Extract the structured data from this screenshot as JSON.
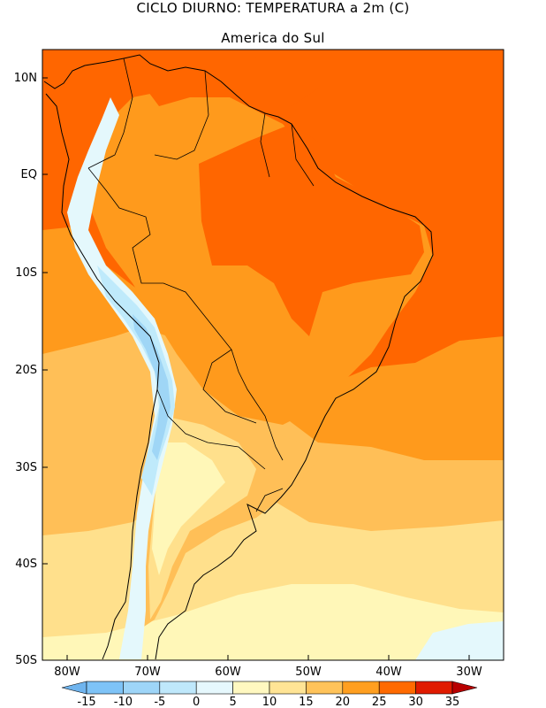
{
  "title": "CICLO DIURNO: TEMPERATURA a 2m (C)",
  "subtitle": "America do Sul",
  "y_ticks": [
    "10N",
    "EQ",
    "10S",
    "20S",
    "30S",
    "40S",
    "50S"
  ],
  "x_ticks": [
    "80W",
    "70W",
    "60W",
    "50W",
    "40W",
    "30W"
  ],
  "colorbar": {
    "labels": [
      "-15",
      "-10",
      "-5",
      "0",
      "5",
      "10",
      "15",
      "20",
      "25",
      "30",
      "35"
    ],
    "colors": [
      "#6fb4ee",
      "#7ec3f7",
      "#9ed5f8",
      "#bfe8fb",
      "#e6f8fd",
      "#fff8c0",
      "#ffe495",
      "#ffc35a",
      "#ff9f20",
      "#ff6a00",
      "#e01b00",
      "#b80000"
    ]
  },
  "palette": {
    "t30": "#ff6600",
    "t25": "#ff9a1c",
    "t20": "#ffbf57",
    "t15": "#ffe08c",
    "t10": "#fff7b8",
    "t5": "#e4f8fc",
    "t0": "#bfeafb",
    "tneg5": "#9fd6f6"
  }
}
